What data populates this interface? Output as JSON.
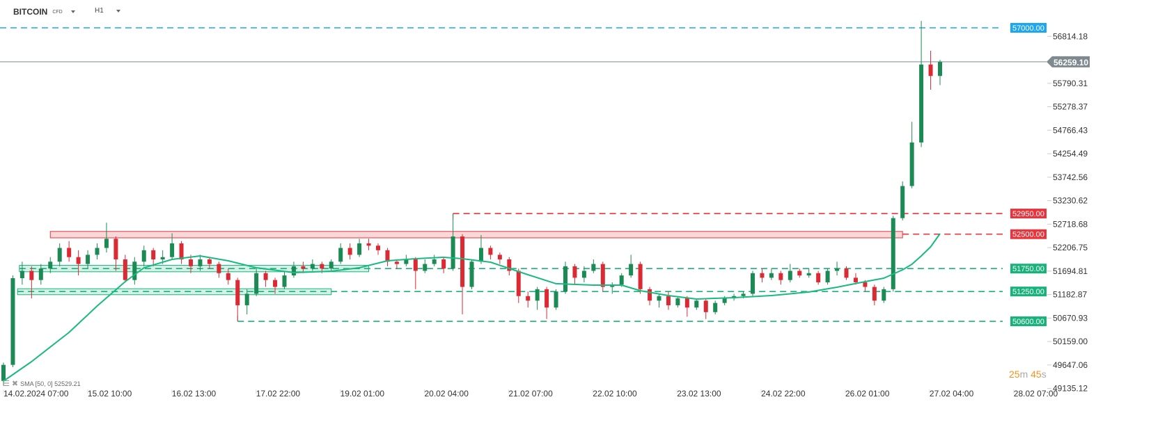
{
  "header": {
    "symbol": "BITCOIN",
    "symbol_type": "CFD",
    "timeframe": "H1"
  },
  "indicator": {
    "label": "SMA [50, 0] 52529.21"
  },
  "countdown": {
    "minutes": "25",
    "m": "m",
    "seconds": "45",
    "s": "s"
  },
  "colors": {
    "up": "#1c8a55",
    "down": "#dc2a35",
    "sma": "#19b980",
    "resistance": "#e8353d",
    "support": "#17b37a",
    "target": "#1ea7ee",
    "current": "#7f8a90"
  },
  "chart_data": {
    "type": "candlestick",
    "timeframe": "H1",
    "ylim": [
      49135.12,
      57000
    ],
    "y_ticks": [
      "56814.18",
      "55790.31",
      "55278.37",
      "54766.43",
      "54254.49",
      "53742.56",
      "53230.62",
      "52718.68",
      "52206.75",
      "51694.81",
      "51182.87",
      "50670.93",
      "50159.00",
      "49647.06",
      "49135.12"
    ],
    "x_ticks": [
      "14.02.2024  07:00",
      "15.02  10:00",
      "16.02  13:00",
      "17.02  22:00",
      "19.02  01:00",
      "20.02  04:00",
      "21.02  07:00",
      "22.02  10:00",
      "23.02  13:00",
      "24.02  22:00",
      "26.02  01:00",
      "27.02  04:00",
      "28.02  07:00"
    ],
    "current_price": "56259.10",
    "levels": [
      {
        "value": 57000,
        "label": "57000.00",
        "kind": "target"
      },
      {
        "value": 52950,
        "label": "52950.00",
        "kind": "resistance"
      },
      {
        "value": 52500,
        "label": "52500.00",
        "kind": "resistance"
      },
      {
        "value": 51750,
        "label": "51750.00",
        "kind": "support"
      },
      {
        "value": 51250,
        "label": "51250.00",
        "kind": "support"
      },
      {
        "value": 50600,
        "label": "50600.00",
        "kind": "support"
      }
    ],
    "ohlc": [
      [
        49300,
        49700,
        49200,
        49650
      ],
      [
        49650,
        51600,
        49600,
        51540
      ],
      [
        51540,
        51900,
        51400,
        51700
      ],
      [
        51700,
        51800,
        51100,
        51500
      ],
      [
        51500,
        51850,
        51400,
        51750
      ],
      [
        51750,
        52000,
        51650,
        51900
      ],
      [
        51900,
        52300,
        51800,
        52200
      ],
      [
        52200,
        52350,
        51900,
        52000
      ],
      [
        52000,
        52150,
        51600,
        51850
      ],
      [
        51850,
        52150,
        51750,
        52050
      ],
      [
        52050,
        52300,
        51950,
        52200
      ],
      [
        52200,
        52750,
        52100,
        52400
      ],
      [
        52400,
        52450,
        51700,
        51950
      ],
      [
        51950,
        52050,
        51450,
        51500
      ],
      [
        51500,
        52000,
        51400,
        51900
      ],
      [
        51900,
        52250,
        51800,
        52150
      ],
      [
        52150,
        52200,
        51800,
        51950
      ],
      [
        51950,
        52150,
        51850,
        52000
      ],
      [
        52000,
        52520,
        51950,
        52300
      ],
      [
        52300,
        52350,
        51850,
        51950
      ],
      [
        51950,
        52050,
        51650,
        51800
      ],
      [
        51800,
        52050,
        51700,
        51950
      ],
      [
        51950,
        52000,
        51750,
        51850
      ],
      [
        51850,
        51900,
        51550,
        51650
      ],
      [
        51650,
        51750,
        51400,
        51500
      ],
      [
        51500,
        51550,
        50600,
        50950
      ],
      [
        50950,
        51300,
        50750,
        51200
      ],
      [
        51200,
        51750,
        51150,
        51650
      ],
      [
        51650,
        51700,
        51350,
        51500
      ],
      [
        51500,
        51550,
        51200,
        51350
      ],
      [
        51350,
        51700,
        51300,
        51600
      ],
      [
        51600,
        51900,
        51550,
        51800
      ],
      [
        51800,
        51900,
        51650,
        51750
      ],
      [
        51750,
        51950,
        51700,
        51850
      ],
      [
        51850,
        51900,
        51650,
        51750
      ],
      [
        51750,
        51950,
        51700,
        51900
      ],
      [
        51900,
        52300,
        51850,
        52200
      ],
      [
        52200,
        52300,
        51950,
        52050
      ],
      [
        52050,
        52400,
        52000,
        52300
      ],
      [
        52300,
        52400,
        52150,
        52250
      ],
      [
        52250,
        52300,
        52050,
        52150
      ],
      [
        52150,
        52200,
        51800,
        51900
      ],
      [
        51900,
        51950,
        51750,
        51850
      ],
      [
        51850,
        52050,
        51800,
        51950
      ],
      [
        51950,
        52000,
        51300,
        51700
      ],
      [
        51700,
        51950,
        51650,
        51850
      ],
      [
        51850,
        52050,
        51800,
        51950
      ],
      [
        51950,
        52000,
        51650,
        51750
      ],
      [
        51750,
        52950,
        51700,
        52450
      ],
      [
        52450,
        52500,
        50750,
        51350
      ],
      [
        51350,
        51950,
        51300,
        51900
      ],
      [
        51900,
        52480,
        51850,
        52200
      ],
      [
        52200,
        52250,
        51950,
        52050
      ],
      [
        52050,
        52100,
        51850,
        51950
      ],
      [
        51950,
        52000,
        51600,
        51700
      ],
      [
        51700,
        51750,
        51000,
        51150
      ],
      [
        51150,
        51250,
        50900,
        51050
      ],
      [
        51050,
        51350,
        50850,
        51300
      ],
      [
        51300,
        51350,
        50650,
        50900
      ],
      [
        50900,
        51300,
        50850,
        51250
      ],
      [
        51250,
        51900,
        51200,
        51800
      ],
      [
        51800,
        51850,
        51400,
        51550
      ],
      [
        51550,
        51800,
        51450,
        51700
      ],
      [
        51700,
        51950,
        51650,
        51850
      ],
      [
        51850,
        51900,
        51250,
        51350
      ],
      [
        51350,
        51450,
        51200,
        51400
      ],
      [
        51400,
        51650,
        51350,
        51600
      ],
      [
        51600,
        52050,
        51550,
        51850
      ],
      [
        51850,
        51900,
        51200,
        51300
      ],
      [
        51300,
        51350,
        50950,
        51050
      ],
      [
        51050,
        51200,
        50900,
        51150
      ],
      [
        51150,
        51250,
        50850,
        50950
      ],
      [
        50950,
        51150,
        50900,
        51100
      ],
      [
        51100,
        51150,
        50700,
        50900
      ],
      [
        50900,
        51100,
        50850,
        51050
      ],
      [
        51050,
        51100,
        50650,
        50800
      ],
      [
        50800,
        51050,
        50750,
        51000
      ],
      [
        51000,
        51150,
        50950,
        51100
      ],
      [
        51100,
        51200,
        51050,
        51150
      ],
      [
        51150,
        51250,
        51100,
        51200
      ],
      [
        51200,
        51700,
        51150,
        51650
      ],
      [
        51650,
        51750,
        51450,
        51550
      ],
      [
        51550,
        51750,
        51500,
        51650
      ],
      [
        51650,
        51700,
        51400,
        51500
      ],
      [
        51500,
        51850,
        51450,
        51700
      ],
      [
        51700,
        51750,
        51550,
        51600
      ],
      [
        51600,
        51750,
        51550,
        51650
      ],
      [
        51650,
        51700,
        51400,
        51450
      ],
      [
        51450,
        51750,
        51400,
        51700
      ],
      [
        51700,
        51900,
        51600,
        51750
      ],
      [
        51750,
        51800,
        51500,
        51550
      ],
      [
        51550,
        51650,
        51400,
        51450
      ],
      [
        51450,
        51500,
        51250,
        51350
      ],
      [
        51350,
        51400,
        50950,
        51050
      ],
      [
        51050,
        51350,
        51000,
        51300
      ],
      [
        51300,
        52900,
        51250,
        52850
      ],
      [
        52850,
        53650,
        52800,
        53550
      ],
      [
        53550,
        54950,
        53500,
        54500
      ],
      [
        54500,
        57150,
        54400,
        56200
      ],
      [
        56200,
        56500,
        55650,
        55950
      ],
      [
        55950,
        56300,
        55750,
        56259.1
      ]
    ],
    "sma": {
      "name": "SMA [50, 0]",
      "points": [
        [
          0,
          49296
        ],
        [
          3,
          49721
        ],
        [
          7,
          50358
        ],
        [
          10,
          50934
        ],
        [
          13,
          51465
        ],
        [
          15,
          51768
        ],
        [
          18,
          51950
        ],
        [
          21,
          52026
        ],
        [
          24,
          51920
        ],
        [
          27,
          51768
        ],
        [
          31,
          51662
        ],
        [
          35,
          51692
        ],
        [
          38,
          51768
        ],
        [
          41,
          51920
        ],
        [
          44,
          51965
        ],
        [
          47,
          51996
        ],
        [
          49,
          51965
        ],
        [
          52,
          51890
        ],
        [
          56,
          51617
        ],
        [
          59,
          51420
        ],
        [
          63,
          51389
        ],
        [
          66,
          51389
        ],
        [
          68,
          51268
        ],
        [
          71,
          51162
        ],
        [
          74,
          51086
        ],
        [
          78,
          51116
        ],
        [
          82,
          51162
        ],
        [
          86,
          51238
        ],
        [
          89,
          51344
        ],
        [
          92,
          51465
        ],
        [
          94,
          51541
        ],
        [
          96,
          51723
        ],
        [
          97,
          51844
        ],
        [
          98,
          52026
        ],
        [
          99,
          52223
        ],
        [
          100,
          52511
        ]
      ]
    },
    "zones": [
      {
        "kind": "resistance",
        "value": 52500,
        "from": 52420,
        "to": 52560,
        "start": 5,
        "end": 96
      },
      {
        "kind": "support",
        "value": 51750,
        "from": 51680,
        "to": 51820,
        "start": 1.7,
        "end": 39
      },
      {
        "kind": "support",
        "value": 51250,
        "from": 51180,
        "to": 51310,
        "start": 1.5,
        "end": 35
      }
    ]
  }
}
